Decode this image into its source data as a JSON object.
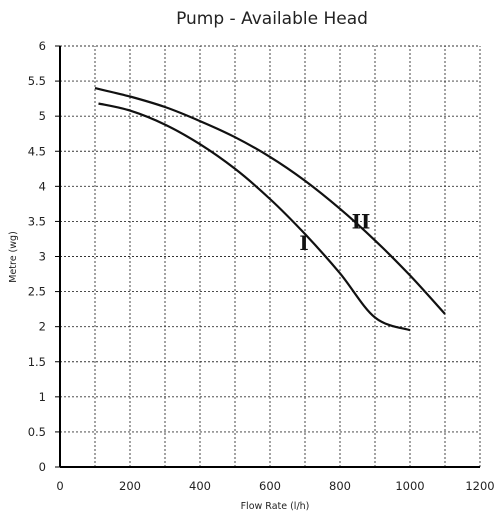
{
  "chart_data": {
    "type": "line",
    "title": "Pump -  Available Head",
    "xlabel": "Flow Rate  (l/h)",
    "ylabel": "Metre  (wg)",
    "xlim": [
      0,
      1200
    ],
    "ylim": [
      0,
      6
    ],
    "x_ticks": [
      "0",
      "200",
      "400",
      "600",
      "800",
      "1000",
      "1200"
    ],
    "y_ticks": [
      "0",
      "0.5",
      "1",
      "1.5",
      "2",
      "2.5",
      "3",
      "3.5",
      "4",
      "4.5",
      "5",
      "5.5",
      "6"
    ],
    "grid": true,
    "series": [
      {
        "name": "I",
        "x": [
          110,
          200,
          300,
          400,
          500,
          600,
          700,
          800,
          900,
          1000
        ],
        "y": [
          5.18,
          5.08,
          4.88,
          4.6,
          4.25,
          3.82,
          3.32,
          2.76,
          2.13,
          1.95
        ]
      },
      {
        "name": "II",
        "x": [
          100,
          200,
          300,
          400,
          500,
          600,
          700,
          800,
          900,
          1000,
          1100
        ],
        "y": [
          5.4,
          5.28,
          5.13,
          4.93,
          4.7,
          4.42,
          4.08,
          3.68,
          3.23,
          2.73,
          2.18
        ]
      }
    ]
  }
}
